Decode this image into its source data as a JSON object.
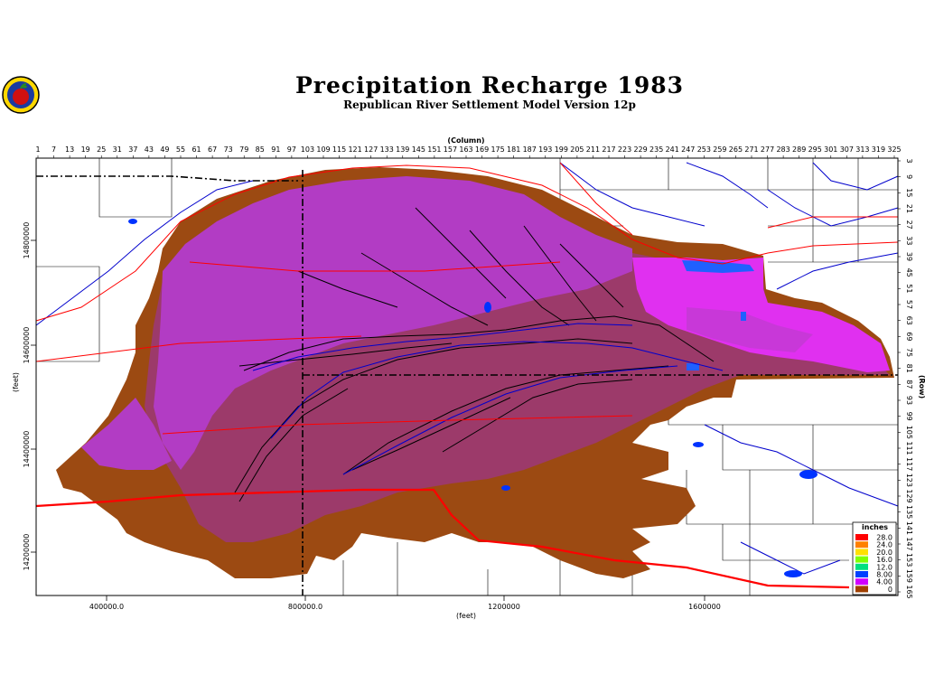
{
  "title": "Precipitation Recharge 1983",
  "subtitle": "Republican River Settlement Model Version 12p",
  "x_axis_label": "(feet)",
  "x_ticks": [
    "400000.0",
    "800000.0",
    "1200000",
    "1600000"
  ],
  "y_axis_label": "(feet)",
  "y_ticks": [
    "14800000",
    "14600000",
    "14400000",
    "14200000"
  ],
  "column_axis_label": "(Column)",
  "column_ticks": [
    "1",
    "7",
    "13",
    "19",
    "25",
    "31",
    "37",
    "43",
    "49",
    "55",
    "61",
    "67",
    "73",
    "79",
    "85",
    "91",
    "97",
    "103",
    "109",
    "115",
    "121",
    "127",
    "133",
    "139",
    "145",
    "151",
    "157",
    "163",
    "169",
    "175",
    "181",
    "187",
    "193",
    "199",
    "205",
    "211",
    "217",
    "223",
    "229",
    "235",
    "241",
    "247",
    "253",
    "259",
    "265",
    "271",
    "277",
    "283",
    "289",
    "295",
    "301",
    "307",
    "313",
    "319",
    "325"
  ],
  "row_axis_label": "(Row)",
  "row_ticks": [
    "3",
    "9",
    "15",
    "21",
    "27",
    "33",
    "39",
    "45",
    "51",
    "57",
    "63",
    "69",
    "75",
    "81",
    "87",
    "93",
    "99",
    "105",
    "111",
    "117",
    "123",
    "129",
    "135",
    "141",
    "147",
    "153",
    "159",
    "165"
  ],
  "legend": {
    "title": "inches",
    "entries": [
      {
        "label": "28.0",
        "color": "#ff0000"
      },
      {
        "label": "24.0",
        "color": "#ff8000"
      },
      {
        "label": "20.0",
        "color": "#ffe000"
      },
      {
        "label": "16.0",
        "color": "#80ff00"
      },
      {
        "label": "12.0",
        "color": "#00e080"
      },
      {
        "label": "8.00",
        "color": "#0040ff"
      },
      {
        "label": "4.00",
        "color": "#d000ff"
      },
      {
        "label": "0",
        "color": "#a04000"
      }
    ]
  },
  "colors": {
    "recharge_low": "#9c4a12",
    "recharge_mid": "#9c3a6a",
    "recharge_high": "#b23cc4",
    "recharge_peak": "#e030f0",
    "rivers": "#0000cc",
    "roads": "#ff0000",
    "boundaries": "#000000"
  }
}
